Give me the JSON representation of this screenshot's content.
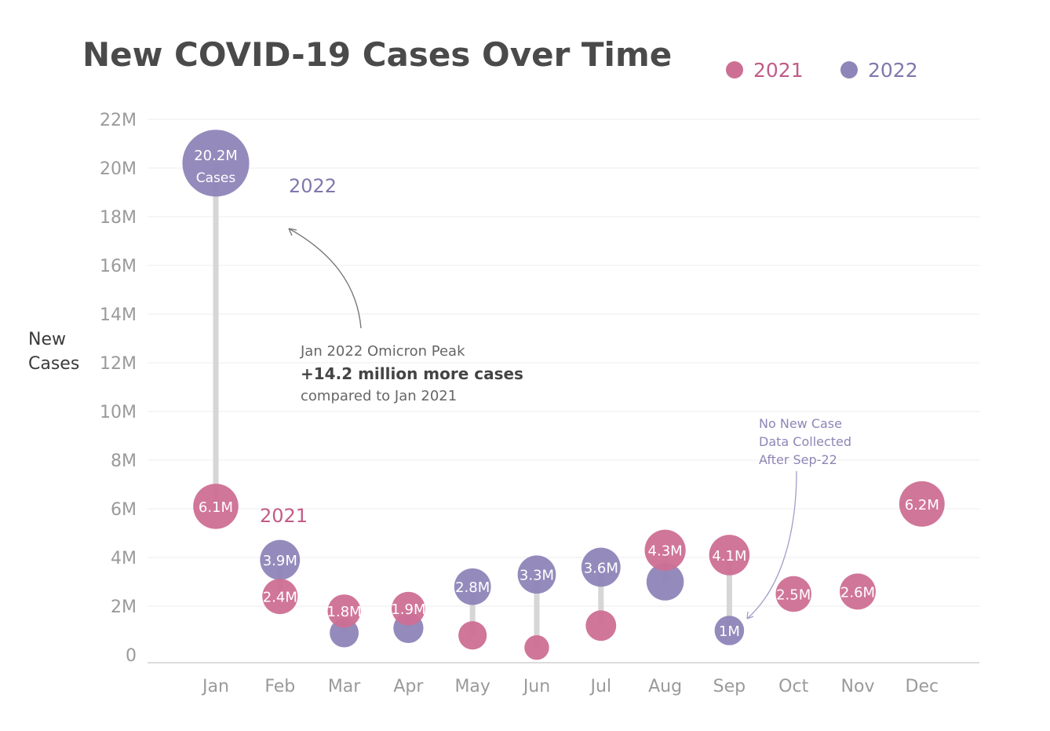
{
  "chart_data": {
    "type": "scatter",
    "title": "New COVID-19 Cases Over Time",
    "ylabel_lines": [
      "New",
      "Cases"
    ],
    "categories": [
      "Jan",
      "Feb",
      "Mar",
      "Apr",
      "May",
      "Jun",
      "Jul",
      "Aug",
      "Sep",
      "Oct",
      "Nov",
      "Dec"
    ],
    "yticks": [
      0,
      2,
      4,
      6,
      8,
      10,
      12,
      14,
      16,
      18,
      20,
      22
    ],
    "ytick_labels": [
      "0",
      "2M",
      "4M",
      "6M",
      "8M",
      "10M",
      "12M",
      "14M",
      "16M",
      "18M",
      "20M",
      "22M"
    ],
    "ylim": [
      0,
      22
    ],
    "unit": "M",
    "grid": true,
    "legend_position": "top-right",
    "series": [
      {
        "name": "2021",
        "color": "#cd6f94",
        "values": [
          6.1,
          2.4,
          1.8,
          1.9,
          0.8,
          0.3,
          1.2,
          4.3,
          4.1,
          2.5,
          2.6,
          6.2
        ],
        "labels": [
          "6.1M",
          "2.4M",
          "1.8M",
          "1.9M",
          "",
          "",
          "",
          "4.3M",
          "4.1M",
          "2.5M",
          "2.6M",
          "6.2M"
        ]
      },
      {
        "name": "2022",
        "color": "#8e85b8",
        "values": [
          20.2,
          3.9,
          0.9,
          1.1,
          2.8,
          3.3,
          3.6,
          3.0,
          1.0,
          null,
          null,
          null
        ],
        "labels": [
          "20.2M",
          "3.9M",
          "",
          "",
          "2.8M",
          "3.3M",
          "3.6M",
          "",
          "1M",
          "",
          "",
          ""
        ]
      }
    ],
    "jan_bubble_sub": "Cases",
    "series_tags": {
      "2021": "2021",
      "2022": "2022"
    },
    "annotations": {
      "peak_line1": "Jan 2022 Omicron Peak",
      "peak_line2": "+14.2 million more cases",
      "peak_line3": "compared to Jan 2021",
      "note_lines": [
        "No New Case",
        "Data Collected",
        "After Sep-22"
      ]
    }
  }
}
